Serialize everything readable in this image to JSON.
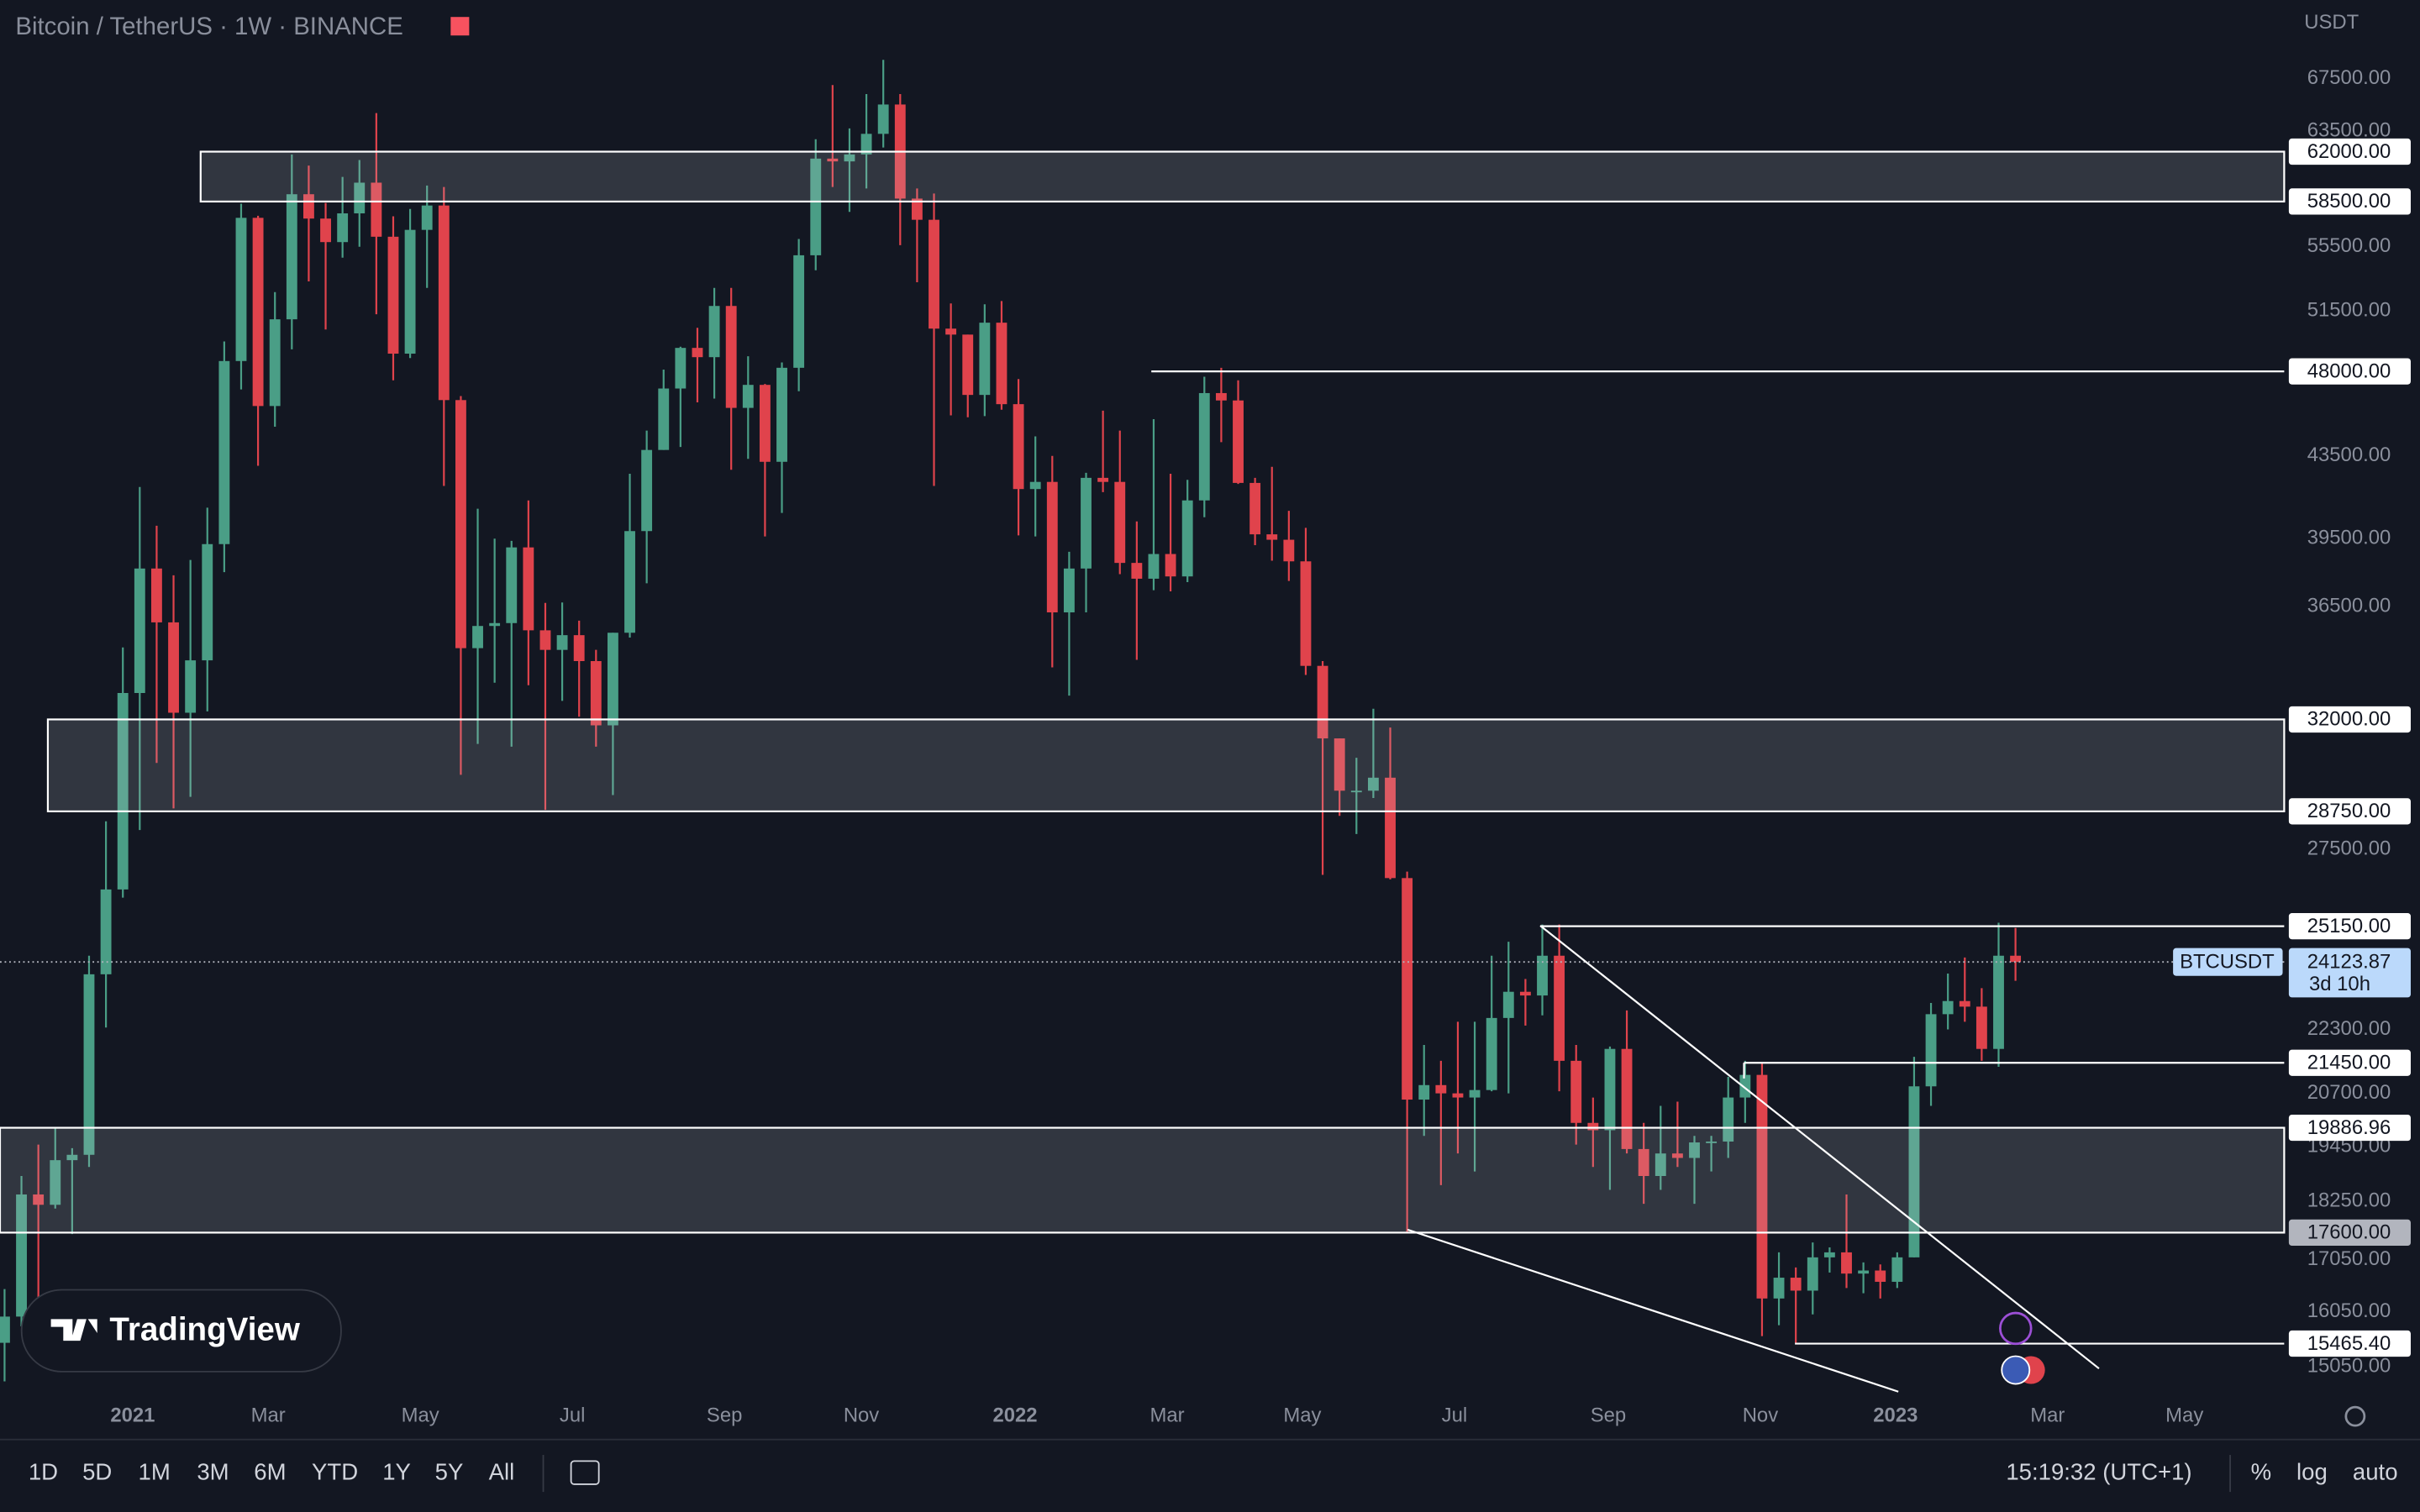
{
  "chart_data": {
    "type": "candlestick",
    "title": "Bitcoin / TetherUS · 1W · BINANCE",
    "currency": "USDT",
    "log": true,
    "up_color": "#4a9e86",
    "down_color": "#e0434c",
    "open": [
      15480,
      15960,
      18400,
      18180,
      19150,
      19270,
      23780,
      26250,
      33000,
      38150,
      35830,
      32250,
      34280,
      39250,
      48580,
      57400,
      46100,
      51000,
      59000,
      57350,
      55800,
      57700,
      59800,
      56150,
      49000,
      56600,
      58230,
      46420,
      34770,
      35680,
      35800,
      39100,
      35500,
      34700,
      35300,
      34250,
      31780,
      35400,
      39850,
      43800,
      47050,
      49330,
      48800,
      51800,
      46000,
      47250,
      43200,
      48200,
      54950,
      61500,
      61300,
      61800,
      63300,
      65500,
      58700,
      57270,
      50450,
      50100,
      46700,
      50800,
      46200,
      41850,
      42200,
      36250,
      38150,
      42400,
      42200,
      38400,
      37700,
      38800,
      37800,
      41300,
      46800,
      46400,
      42150,
      39700,
      39450,
      38470,
      34060,
      31300,
      29450,
      29450,
      29900,
      26600,
      20550,
      20900,
      20700,
      20600,
      20780,
      22600,
      23300,
      23200,
      24300,
      21500,
      20000,
      19830,
      21800,
      19400,
      18800,
      19300,
      19200,
      19550,
      19570,
      20600,
      21150,
      16300,
      16700,
      16450,
      17100,
      17200,
      16780,
      16840,
      16620,
      17100,
      20870,
      22700,
      23050,
      22900,
      21800,
      24300
    ],
    "high": [
      16480,
      18800,
      19500,
      19900,
      19420,
      24300,
      28420,
      34800,
      41950,
      40100,
      37850,
      38530,
      40950,
      49700,
      58350,
      57540,
      52640,
      61800,
      61000,
      58400,
      60200,
      61400,
      64850,
      57500,
      58000,
      59600,
      59500,
      46640,
      40900,
      39500,
      39400,
      41300,
      36650,
      36670,
      35900,
      34700,
      35400,
      42600,
      44800,
      48100,
      49400,
      50500,
      52900,
      52900,
      48850,
      47300,
      48500,
      56000,
      62900,
      67000,
      63700,
      66300,
      69000,
      66300,
      59400,
      59050,
      51950,
      50100,
      51900,
      52100,
      47570,
      44500,
      43500,
      38900,
      42650,
      45850,
      44800,
      40300,
      45400,
      42600,
      42300,
      47700,
      48200,
      47500,
      42400,
      42950,
      40800,
      40000,
      34250,
      31300,
      30600,
      32400,
      31700,
      26800,
      21900,
      21500,
      22500,
      22500,
      24300,
      24700,
      23650,
      25200,
      25200,
      21900,
      20600,
      21860,
      22800,
      20000,
      20400,
      20500,
      19700,
      19700,
      21100,
      21500,
      21450,
      17200,
      16900,
      17400,
      17300,
      18400,
      17000,
      16960,
      17200,
      21600,
      23000,
      23800,
      24250,
      23400,
      25250,
      25100
    ],
    "low": [
      14800,
      15780,
      16200,
      18100,
      17570,
      19000,
      22350,
      26000,
      28130,
      30420,
      28850,
      29240,
      32300,
      37990,
      47000,
      43000,
      45000,
      49250,
      53300,
      50400,
      54800,
      55500,
      51300,
      47500,
      48750,
      52900,
      42000,
      30000,
      31100,
      33400,
      31000,
      33300,
      28800,
      32700,
      32100,
      31000,
      29300,
      35200,
      37500,
      43800,
      43950,
      46300,
      46500,
      42800,
      43350,
      39600,
      40700,
      46900,
      54000,
      59500,
      57800,
      59400,
      62300,
      55600,
      53250,
      42000,
      45600,
      45500,
      45560,
      45900,
      39650,
      39600,
      34000,
      32900,
      36250,
      41700,
      37900,
      34300,
      37200,
      37150,
      37550,
      40500,
      44200,
      42100,
      39200,
      38500,
      37600,
      33700,
      26700,
      28600,
      28000,
      29200,
      26560,
      17600,
      19700,
      18600,
      19300,
      18900,
      20750,
      20700,
      22400,
      22670,
      20750,
      19500,
      19000,
      18500,
      19300,
      18200,
      18500,
      19000,
      18200,
      18900,
      19200,
      20000,
      15600,
      15800,
      15480,
      16000,
      16800,
      16500,
      16400,
      16300,
      16500,
      17100,
      20400,
      22300,
      22500,
      21500,
      21350,
      23600
    ],
    "close": [
      15960,
      18400,
      18180,
      19150,
      19270,
      23780,
      26250,
      33000,
      38150,
      35830,
      32250,
      34280,
      39250,
      48580,
      57400,
      46100,
      51000,
      59000,
      57350,
      55800,
      57700,
      59800,
      56150,
      49000,
      56600,
      58230,
      46420,
      34770,
      35680,
      35800,
      39100,
      35500,
      34700,
      35300,
      34250,
      31780,
      35400,
      39850,
      43800,
      47050,
      49330,
      48800,
      51800,
      46000,
      47250,
      43200,
      48200,
      54950,
      61500,
      61300,
      61800,
      63300,
      65500,
      58700,
      57270,
      50450,
      50100,
      46700,
      50800,
      46200,
      41850,
      42200,
      36250,
      38150,
      42400,
      42200,
      38400,
      37700,
      38800,
      37800,
      41300,
      46800,
      46400,
      42150,
      39700,
      39450,
      38470,
      34060,
      31300,
      29450,
      29450,
      29900,
      26600,
      20550,
      20900,
      20700,
      20600,
      20780,
      22600,
      23300,
      23200,
      24300,
      21500,
      20000,
      19830,
      21800,
      19400,
      18800,
      19300,
      19200,
      19550,
      19570,
      20600,
      21150,
      16300,
      16700,
      16450,
      17100,
      17200,
      16780,
      16840,
      16620,
      17100,
      20870,
      22700,
      23050,
      22900,
      21800,
      24300,
      24123.87
    ],
    "xlim": [
      -0.27,
      134.9
    ],
    "xticks": [
      {
        "value": 7.58,
        "label": "2021"
      },
      {
        "value": 15.6,
        "label": "Mar"
      },
      {
        "value": 24.6,
        "label": "May"
      },
      {
        "value": 33.6,
        "label": "Jul"
      },
      {
        "value": 42.6,
        "label": "Sep"
      },
      {
        "value": 50.7,
        "label": "Nov"
      },
      {
        "value": 59.8,
        "label": "2022"
      },
      {
        "value": 68.8,
        "label": "Mar"
      },
      {
        "value": 76.8,
        "label": "May"
      },
      {
        "value": 85.8,
        "label": "Jul"
      },
      {
        "value": 94.9,
        "label": "Sep"
      },
      {
        "value": 103.9,
        "label": "Nov"
      },
      {
        "value": 111.9,
        "label": "2023"
      },
      {
        "value": 120.9,
        "label": "Mar"
      },
      {
        "value": 129.0,
        "label": "May"
      }
    ],
    "ylim": [
      14545,
      73980
    ],
    "yticks": [
      {
        "value": 67500,
        "label": "67500.00"
      },
      {
        "value": 63500,
        "label": "63500.00"
      },
      {
        "value": 55500,
        "label": "55500.00"
      },
      {
        "value": 51500,
        "label": "51500.00"
      },
      {
        "value": 43500,
        "label": "43500.00"
      },
      {
        "value": 39500,
        "label": "39500.00"
      },
      {
        "value": 36500,
        "label": "36500.00"
      },
      {
        "value": 27500,
        "label": "27500.00"
      },
      {
        "value": 22300,
        "label": "22300.00"
      },
      {
        "value": 20700,
        "label": "20700.00"
      },
      {
        "value": 19450,
        "label": "19450.00"
      },
      {
        "value": 18250,
        "label": "18250.00"
      },
      {
        "value": 17050,
        "label": "17050.00"
      },
      {
        "value": 16050,
        "label": "16050.00"
      },
      {
        "value": 15050,
        "label": "15050.00"
      }
    ],
    "levels": [
      {
        "value": 62000,
        "label": "62000.00"
      },
      {
        "value": 58500,
        "label": "58500.00"
      },
      {
        "value": 48000,
        "label": "48000.00"
      },
      {
        "value": 32000,
        "label": "32000.00"
      },
      {
        "value": 28750,
        "label": "28750.00"
      },
      {
        "value": 25150,
        "label": "25150.00"
      },
      {
        "value": 21450,
        "label": "21450.00"
      },
      {
        "value": 19886.96,
        "label": "19886.96"
      },
      {
        "value": 17600,
        "label": "17600.00"
      },
      {
        "value": 15465.4,
        "label": "15465.40"
      }
    ],
    "last_price": {
      "name": "BTCUSDT",
      "value": 24123.87,
      "label": "24123.87",
      "countdown": "3d 10h"
    }
  },
  "logo": "TradingView",
  "toolbar": {
    "ranges": [
      "1D",
      "5D",
      "1M",
      "3M",
      "6M",
      "YTD",
      "1Y",
      "5Y",
      "All"
    ],
    "time": "15:19:32 (UTC+1)",
    "options": [
      "%",
      "log",
      "auto"
    ]
  }
}
